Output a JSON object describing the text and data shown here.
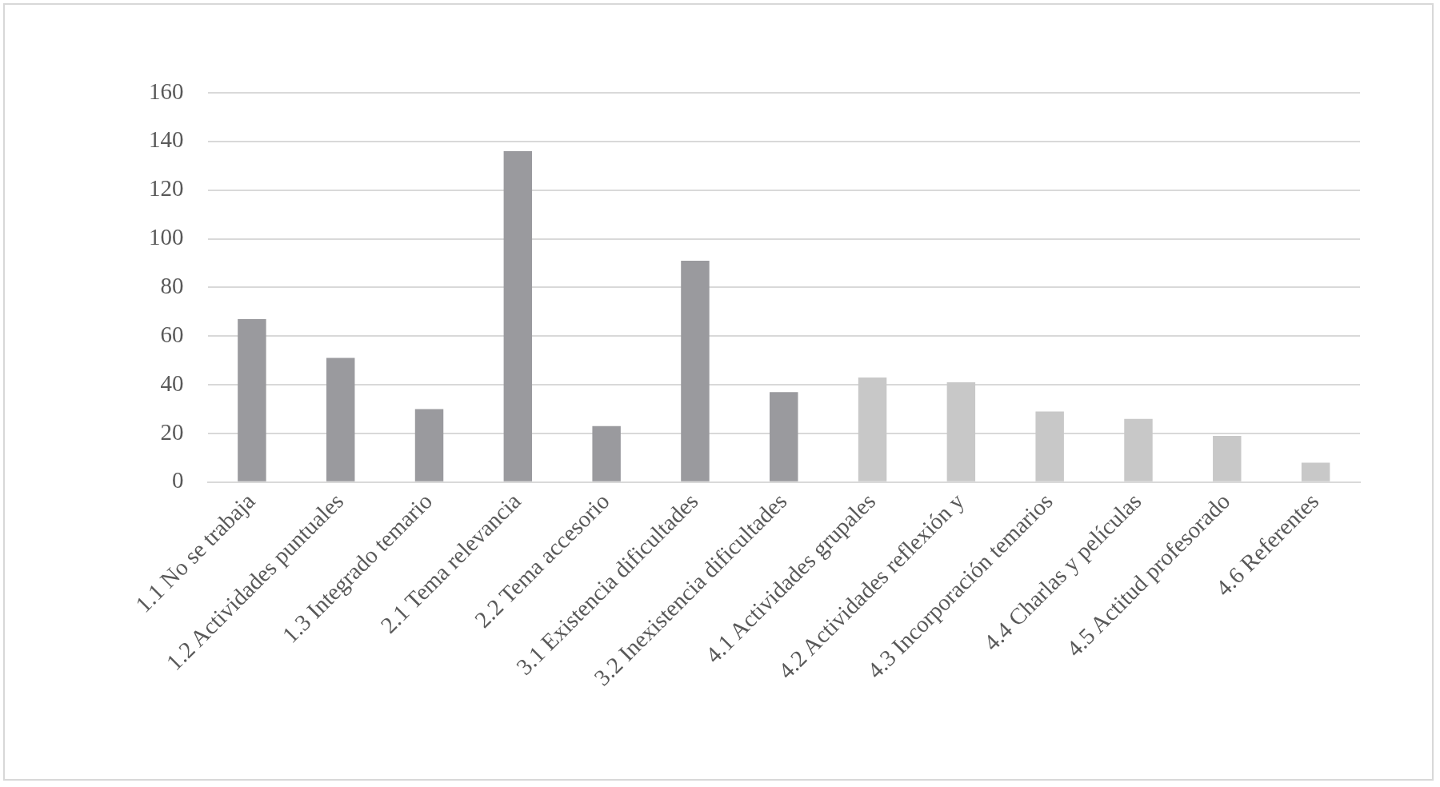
{
  "chart_data": {
    "type": "bar",
    "categories": [
      "1.1 No se trabaja",
      "1.2 Actividades puntuales",
      "1.3 Integrado temario",
      "2.1 Tema relevancia",
      "2.2 Tema accesorio",
      "3.1 Existencia dificultades",
      "3.2 Inexistencia dificultades",
      "4.1 Actividades grupales",
      "4.2 Actividades reflexión y",
      "4.3 Incorporación temarios",
      "4.4 Charlas y películas",
      "4.5 Actitud profesorado",
      "4.6 Referentes"
    ],
    "values": [
      67,
      51,
      30,
      136,
      23,
      91,
      37,
      43,
      41,
      29,
      26,
      19,
      8
    ],
    "colors": [
      "#9a9a9e",
      "#9a9a9e",
      "#9a9a9e",
      "#9a9a9e",
      "#9a9a9e",
      "#9a9a9e",
      "#9a9a9e",
      "#c8c8c8",
      "#c8c8c8",
      "#c8c8c8",
      "#c8c8c8",
      "#c8c8c8",
      "#c8c8c8"
    ],
    "ylim": [
      0,
      160
    ],
    "yticks": [
      0,
      20,
      40,
      60,
      80,
      100,
      120,
      140,
      160
    ],
    "grid": "y"
  }
}
